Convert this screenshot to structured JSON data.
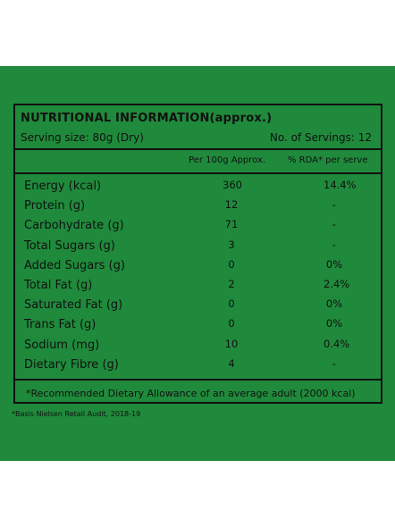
{
  "panel": {
    "title": "NUTRITIONAL INFORMATION(approx.)",
    "serving_size": "Serving size: 80g (Dry)",
    "servings": "No. of Servings: 12",
    "col_per100": "Per 100g Approx.",
    "col_rda": "% RDA* per serve",
    "rows": [
      {
        "name": "Energy (kcal)",
        "value": "360",
        "rda": "14.4%"
      },
      {
        "name": "Protein (g)",
        "value": "12",
        "rda": "-"
      },
      {
        "name": "Carbohydrate (g)",
        "value": "71",
        "rda": "-"
      },
      {
        "name": "Total Sugars (g)",
        "value": "3",
        "rda": "-"
      },
      {
        "name": "Added Sugars (g)",
        "value": "0",
        "rda": "0%"
      },
      {
        "name": "Total Fat (g)",
        "value": "2",
        "rda": "2.4%"
      },
      {
        "name": "Saturated Fat (g)",
        "value": "0",
        "rda": "0%"
      },
      {
        "name": "Trans Fat (g)",
        "value": "0",
        "rda": "0%"
      },
      {
        "name": "Sodium (mg)",
        "value": "10",
        "rda": "0.4%"
      },
      {
        "name": "Dietary Fibre (g)",
        "value": "4",
        "rda": "-"
      }
    ],
    "footnote": "*Recommended Dietary Allowance of an average adult (2000 kcal)"
  },
  "source_note": "*Basis Nielsen Retail Audit, 2018-19",
  "colors": {
    "background": "#1f8a3b",
    "ink": "#111111"
  }
}
